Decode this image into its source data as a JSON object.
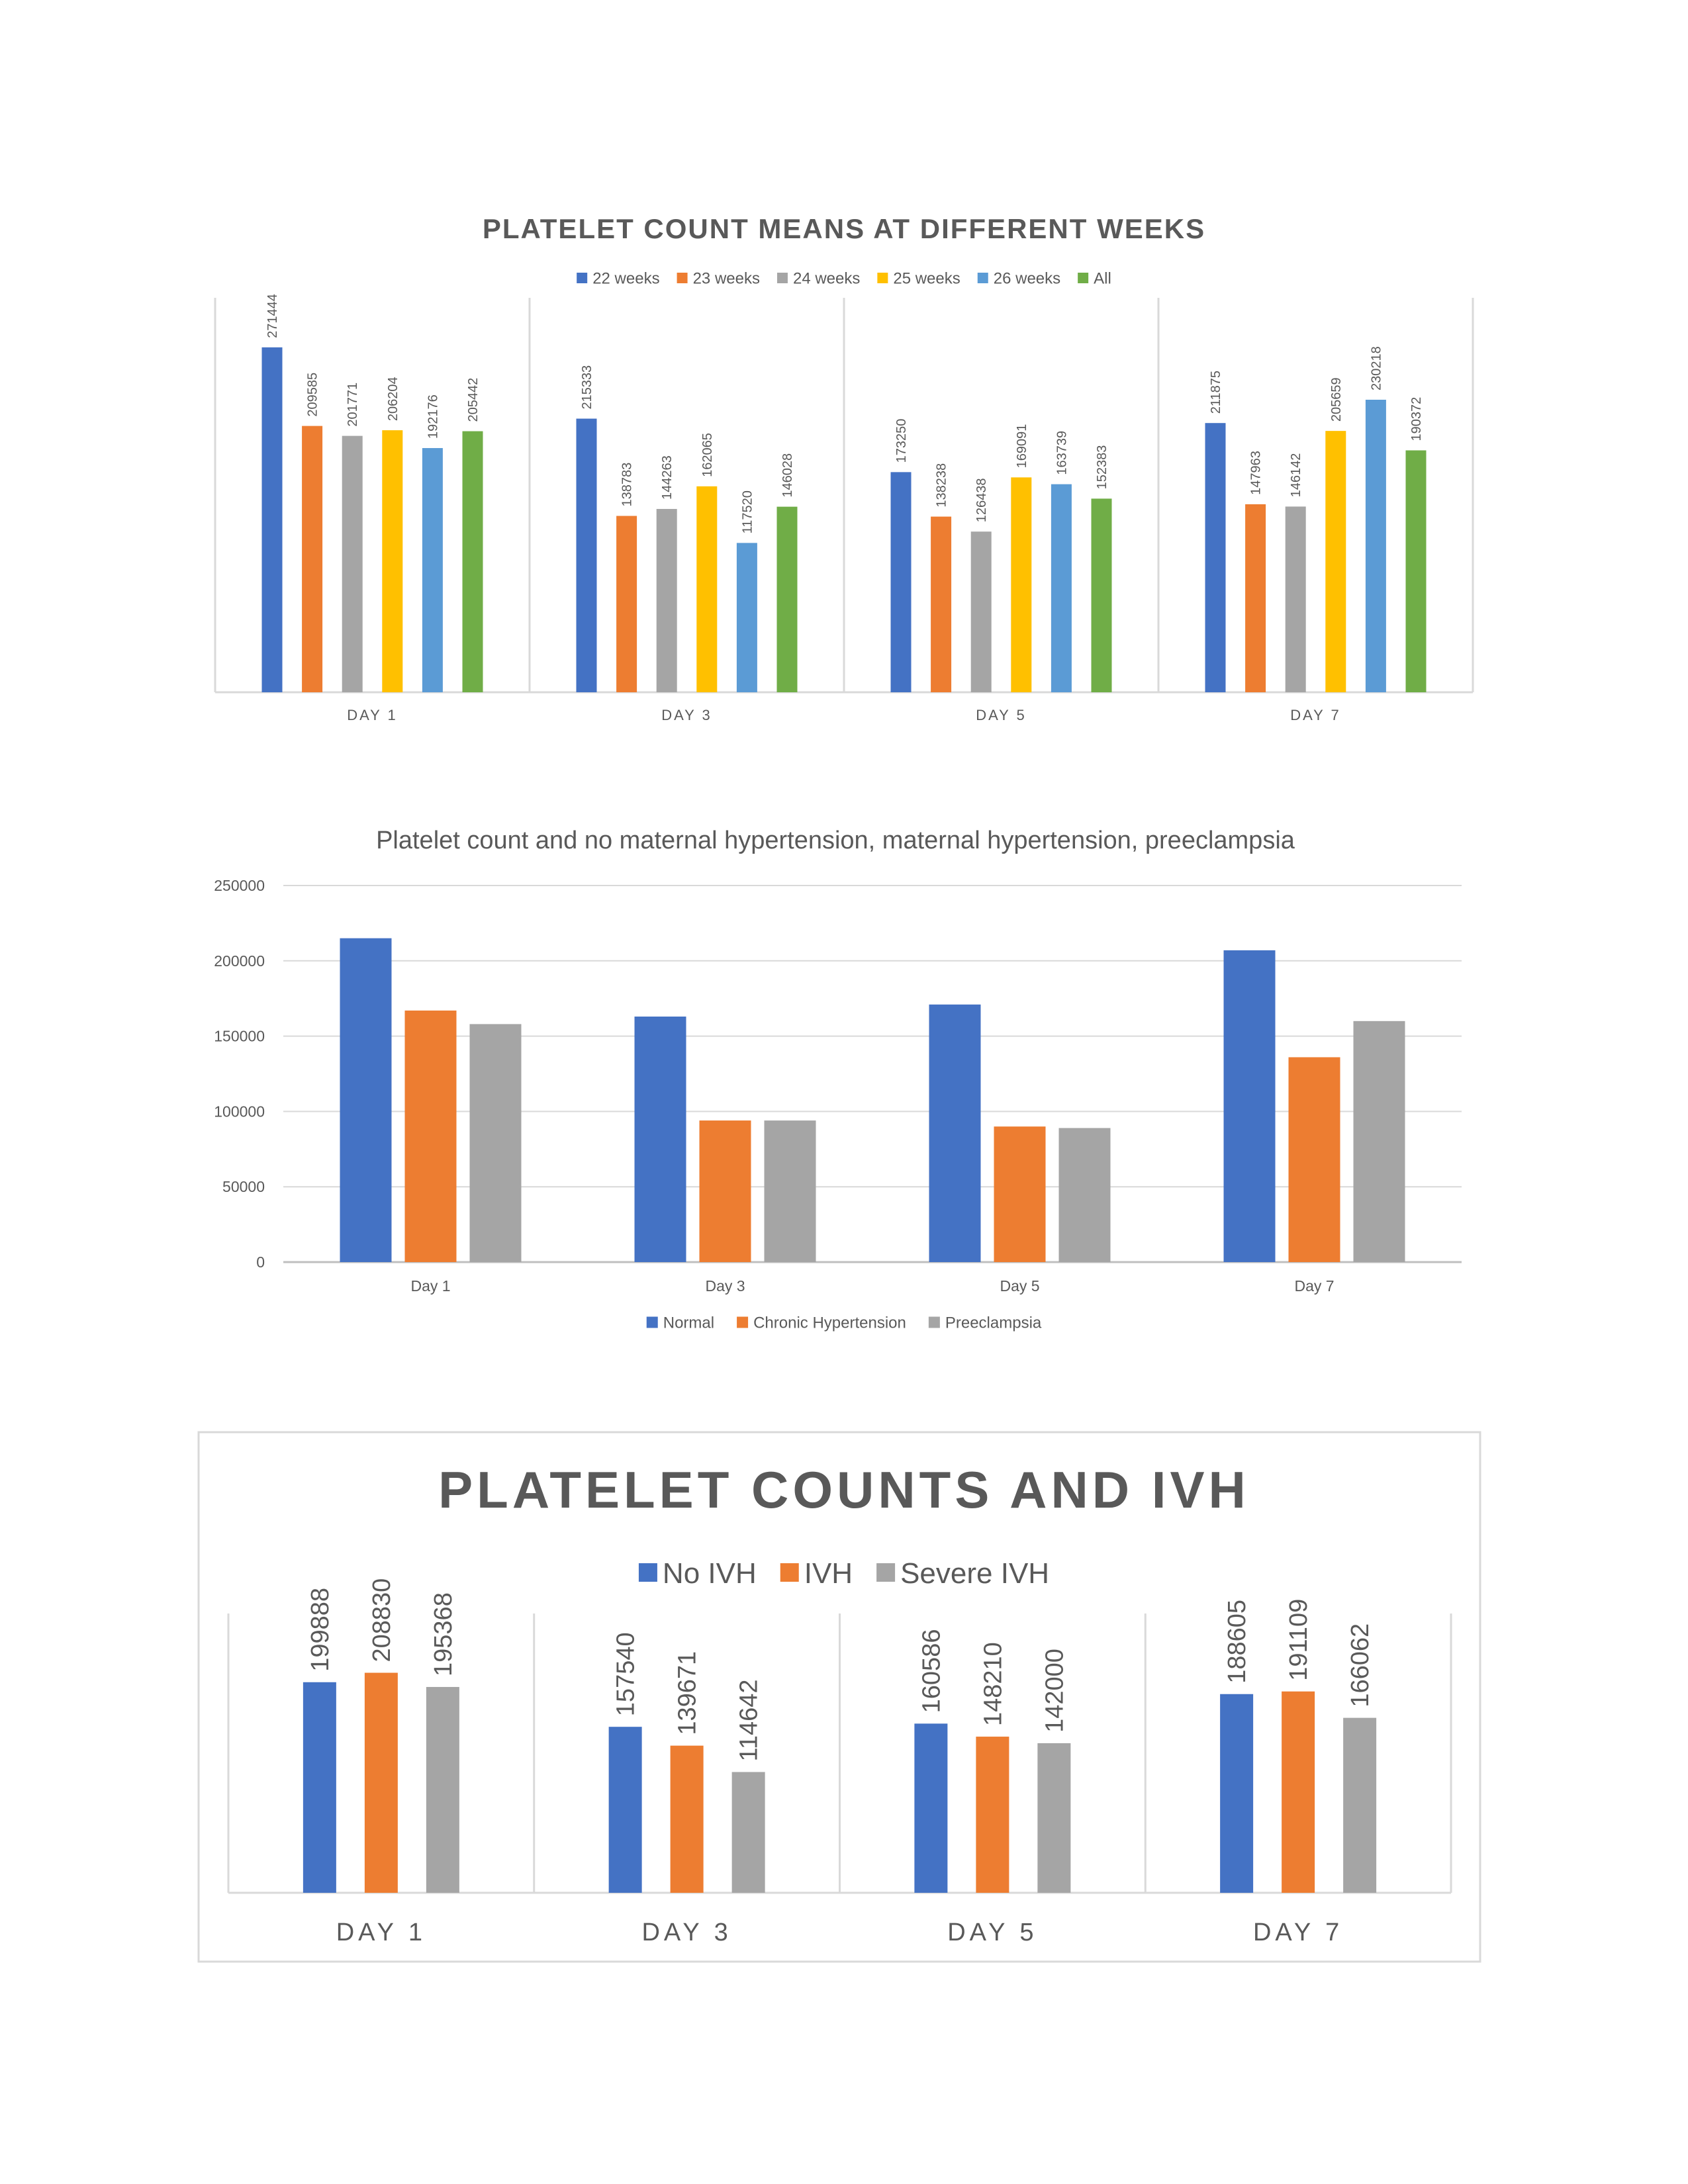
{
  "chart_data": [
    {
      "type": "bar",
      "title": "PLATELET COUNT MEANS AT DIFFERENT WEEKS",
      "categories": [
        "DAY 1",
        "DAY 3",
        "DAY 5",
        "DAY 7"
      ],
      "series": [
        {
          "name": "22 weeks",
          "color": "#4472C4",
          "values": [
            271444,
            215333,
            173250,
            211875
          ]
        },
        {
          "name": "23 weeks",
          "color": "#ED7D31",
          "values": [
            209585,
            138783,
            138238,
            147963
          ]
        },
        {
          "name": "24 weeks",
          "color": "#A5A5A5",
          "values": [
            201771,
            144263,
            126438,
            146142
          ]
        },
        {
          "name": "25 weeks",
          "color": "#FFC000",
          "values": [
            206204,
            162065,
            169091,
            205659
          ]
        },
        {
          "name": "26 weeks",
          "color": "#5B9BD5",
          "values": [
            192176,
            117520,
            163739,
            230218
          ]
        },
        {
          "name": "All",
          "color": "#70AD47",
          "values": [
            205442,
            146028,
            152383,
            190372
          ]
        }
      ],
      "legend": "top",
      "data_labels": true,
      "ylim": [
        0,
        300000
      ],
      "grid": false
    },
    {
      "type": "bar",
      "title": "Platelet count and no maternal hypertension, maternal hypertension, preeclampsia",
      "categories": [
        "Day 1",
        "Day 3",
        "Day 5",
        "Day 7"
      ],
      "series": [
        {
          "name": "Normal",
          "color": "#4472C4",
          "values": [
            215000,
            163000,
            171000,
            207000
          ]
        },
        {
          "name": "Chronic Hypertension",
          "color": "#ED7D31",
          "values": [
            167000,
            94000,
            90000,
            136000
          ]
        },
        {
          "name": "Preeclampsia",
          "color": "#A5A5A5",
          "values": [
            158000,
            94000,
            89000,
            160000
          ]
        }
      ],
      "legend": "bottom",
      "ylim": [
        0,
        250000
      ],
      "yticks": [
        "0",
        "50000",
        "100000",
        "150000",
        "200000",
        "250000"
      ],
      "grid": true
    },
    {
      "type": "bar",
      "title": "PLATELET COUNTS AND IVH",
      "categories": [
        "DAY 1",
        "DAY 3",
        "DAY 5",
        "DAY 7"
      ],
      "series": [
        {
          "name": "No IVH",
          "color": "#4472C4",
          "values": [
            199888,
            157540,
            160586,
            188605
          ]
        },
        {
          "name": "IVH",
          "color": "#ED7D31",
          "values": [
            208830,
            139671,
            148210,
            191109
          ]
        },
        {
          "name": "Severe IVH",
          "color": "#A5A5A5",
          "values": [
            195368,
            114642,
            142000,
            166062
          ]
        }
      ],
      "legend": "top",
      "data_labels": true,
      "ylim": [
        0,
        250000
      ],
      "grid": false
    }
  ]
}
